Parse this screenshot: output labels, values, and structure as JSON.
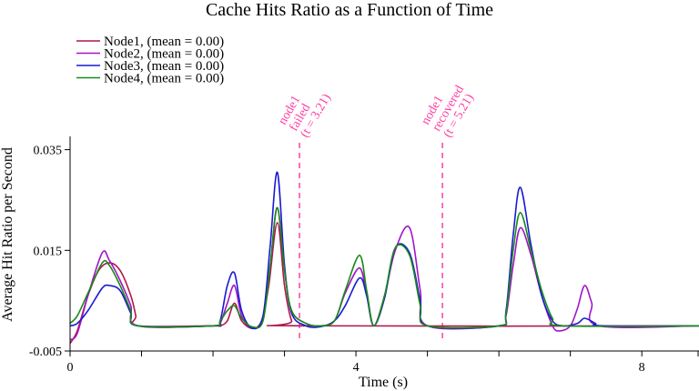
{
  "chart_data": {
    "type": "line",
    "title": "Cache Hits Ratio as a Function of Time",
    "xlabel": "Time (s)",
    "ylabel": "Average Hit Ratio per Second",
    "xlim": [
      0,
      8.8
    ],
    "ylim": [
      -0.005,
      0.038
    ],
    "x_ticks": [
      0,
      4,
      8
    ],
    "x_minor_ticks": [
      1,
      2,
      3,
      5,
      6,
      7,
      8.8
    ],
    "y_ticks": [
      -0.005,
      0.015,
      0.035
    ],
    "legend_position": "top-left",
    "grid": false,
    "series": [
      {
        "name": "Node1, (mean = 0.00)",
        "color": "#b0174c",
        "points": [
          [
            0,
            -0.0035
          ],
          [
            0.1,
            -0.001
          ],
          [
            0.25,
            0.006
          ],
          [
            0.4,
            0.011
          ],
          [
            0.55,
            0.0125
          ],
          [
            0.7,
            0.011
          ],
          [
            0.85,
            0.006
          ],
          [
            0.92,
            0.002
          ],
          [
            0.95,
            0.0
          ],
          [
            2.0,
            0.0
          ],
          [
            2.1,
            0.0
          ],
          [
            2.2,
            0.001
          ],
          [
            2.3,
            0.0045
          ],
          [
            2.4,
            0.001
          ],
          [
            2.55,
            -0.0005
          ],
          [
            2.68,
            0.001
          ],
          [
            2.78,
            0.008
          ],
          [
            2.9,
            0.0205
          ],
          [
            3.0,
            0.008
          ],
          [
            3.1,
            0.001
          ],
          [
            3.2,
            0.0
          ],
          [
            8.8,
            0.0
          ]
        ]
      },
      {
        "name": "Node2, (mean = 0.00)",
        "color": "#a016c8",
        "points": [
          [
            0,
            -0.0028
          ],
          [
            0.1,
            -0.0015
          ],
          [
            0.25,
            0.006
          ],
          [
            0.45,
            0.0145
          ],
          [
            0.55,
            0.013
          ],
          [
            0.7,
            0.009
          ],
          [
            0.85,
            0.004
          ],
          [
            0.95,
            0.0
          ],
          [
            2.0,
            0.0
          ],
          [
            2.1,
            0.0005
          ],
          [
            2.2,
            0.0045
          ],
          [
            2.3,
            0.008
          ],
          [
            2.4,
            0.002
          ],
          [
            2.55,
            -0.0005
          ],
          [
            2.7,
            0.0015
          ],
          [
            2.8,
            0.012
          ],
          [
            2.9,
            0.0235
          ],
          [
            3.0,
            0.011
          ],
          [
            3.1,
            0.003
          ],
          [
            3.3,
            0.0005
          ],
          [
            3.5,
            0.0
          ],
          [
            3.7,
            0.001
          ],
          [
            3.85,
            0.0065
          ],
          [
            4.05,
            0.0115
          ],
          [
            4.15,
            0.006
          ],
          [
            4.25,
            0.0
          ],
          [
            4.4,
            0.006
          ],
          [
            4.55,
            0.015
          ],
          [
            4.75,
            0.0195
          ],
          [
            4.9,
            0.007
          ],
          [
            5.0,
            0.0
          ],
          [
            6.0,
            0.0
          ],
          [
            6.1,
            0.002
          ],
          [
            6.2,
            0.012
          ],
          [
            6.3,
            0.0195
          ],
          [
            6.45,
            0.014
          ],
          [
            6.6,
            0.006
          ],
          [
            6.75,
            0.0
          ],
          [
            6.85,
            -0.001
          ],
          [
            7.0,
            0.0
          ],
          [
            7.1,
            0.0035
          ],
          [
            7.2,
            0.008
          ],
          [
            7.3,
            0.0045
          ],
          [
            7.4,
            0.0
          ],
          [
            8.8,
            0.0
          ]
        ]
      },
      {
        "name": "Node3, (mean = 0.00)",
        "color": "#1a1ad0",
        "points": [
          [
            0,
            0.0
          ],
          [
            0.1,
            0.0005
          ],
          [
            0.25,
            0.003
          ],
          [
            0.45,
            0.0075
          ],
          [
            0.55,
            0.008
          ],
          [
            0.7,
            0.007
          ],
          [
            0.85,
            0.0025
          ],
          [
            0.95,
            0.0
          ],
          [
            2.0,
            0.0
          ],
          [
            2.1,
            0.001
          ],
          [
            2.2,
            0.008
          ],
          [
            2.3,
            0.0105
          ],
          [
            2.4,
            0.003
          ],
          [
            2.55,
            -0.0005
          ],
          [
            2.7,
            0.002
          ],
          [
            2.8,
            0.016
          ],
          [
            2.9,
            0.0305
          ],
          [
            3.0,
            0.012
          ],
          [
            3.1,
            0.0025
          ],
          [
            3.3,
            0.0
          ],
          [
            3.5,
            -0.0002
          ],
          [
            3.7,
            0.001
          ],
          [
            3.85,
            0.004
          ],
          [
            4.05,
            0.0095
          ],
          [
            4.15,
            0.006
          ],
          [
            4.25,
            0.0
          ],
          [
            4.4,
            0.0055
          ],
          [
            4.55,
            0.0155
          ],
          [
            4.75,
            0.0145
          ],
          [
            4.9,
            0.005
          ],
          [
            5.0,
            0.0
          ],
          [
            6.0,
            0.0
          ],
          [
            6.1,
            0.003
          ],
          [
            6.2,
            0.018
          ],
          [
            6.3,
            0.0275
          ],
          [
            6.45,
            0.016
          ],
          [
            6.6,
            0.006
          ],
          [
            6.75,
            0.001
          ],
          [
            6.9,
            0.0
          ],
          [
            7.1,
            0.0005
          ],
          [
            7.2,
            0.0015
          ],
          [
            7.35,
            0.0005
          ],
          [
            7.45,
            0.0
          ],
          [
            8.8,
            0.0
          ]
        ]
      },
      {
        "name": "Node4, (mean = 0.00)",
        "color": "#1a8a1a",
        "points": [
          [
            0,
            0.0005
          ],
          [
            0.1,
            0.002
          ],
          [
            0.25,
            0.0065
          ],
          [
            0.45,
            0.0125
          ],
          [
            0.55,
            0.012
          ],
          [
            0.7,
            0.008
          ],
          [
            0.85,
            0.003
          ],
          [
            0.95,
            0.0
          ],
          [
            2.0,
            0.0
          ],
          [
            2.1,
            0.001
          ],
          [
            2.2,
            0.003
          ],
          [
            2.3,
            0.004
          ],
          [
            2.4,
            0.0015
          ],
          [
            2.55,
            -0.0002
          ],
          [
            2.7,
            0.001
          ],
          [
            2.8,
            0.012
          ],
          [
            2.9,
            0.0235
          ],
          [
            3.0,
            0.011
          ],
          [
            3.1,
            0.003
          ],
          [
            3.3,
            0.0005
          ],
          [
            3.5,
            0.0
          ],
          [
            3.7,
            0.001
          ],
          [
            3.85,
            0.007
          ],
          [
            4.05,
            0.014
          ],
          [
            4.15,
            0.007
          ],
          [
            4.25,
            0.0
          ],
          [
            4.4,
            0.006
          ],
          [
            4.55,
            0.0155
          ],
          [
            4.75,
            0.014
          ],
          [
            4.9,
            0.004
          ],
          [
            5.0,
            0.0
          ],
          [
            6.0,
            0.0
          ],
          [
            6.1,
            0.0025
          ],
          [
            6.2,
            0.015
          ],
          [
            6.3,
            0.0225
          ],
          [
            6.45,
            0.015
          ],
          [
            6.6,
            0.007
          ],
          [
            6.75,
            0.0015
          ],
          [
            6.9,
            0.0
          ],
          [
            8.8,
            0.0
          ]
        ]
      }
    ],
    "annotations": [
      {
        "x": 3.21,
        "lines": [
          "node1",
          "failed",
          "(t = 3.21)"
        ],
        "color": "#ff3fa4"
      },
      {
        "x": 5.21,
        "lines": [
          "node1",
          "recovered",
          "(t = 5.21)"
        ],
        "color": "#ff3fa4"
      }
    ]
  }
}
